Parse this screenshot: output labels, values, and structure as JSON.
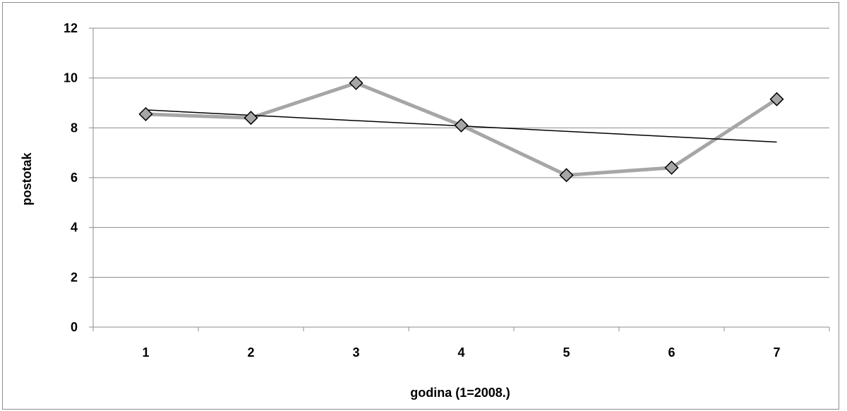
{
  "chart_data": {
    "type": "line",
    "xlabel": "godina (1=2008.)",
    "ylabel": "postotak",
    "categories": [
      "1",
      "2",
      "3",
      "4",
      "5",
      "6",
      "7"
    ],
    "series": [
      {
        "values": [
          8.55,
          8.4,
          9.8,
          8.1,
          6.1,
          6.4,
          9.15
        ]
      }
    ],
    "trendline": {
      "type": "linear",
      "start": 8.72,
      "end": 7.43
    },
    "ylim": [
      0,
      12
    ],
    "yticks": [
      "0",
      "2",
      "4",
      "6",
      "8",
      "10",
      "12"
    ],
    "grid": true,
    "colors": {
      "series_line": "#a6a6a6",
      "marker_fill": "#a6a6a6",
      "marker_stroke": "#000000",
      "trendline": "#000000",
      "grid": "#8c8c8c"
    }
  }
}
